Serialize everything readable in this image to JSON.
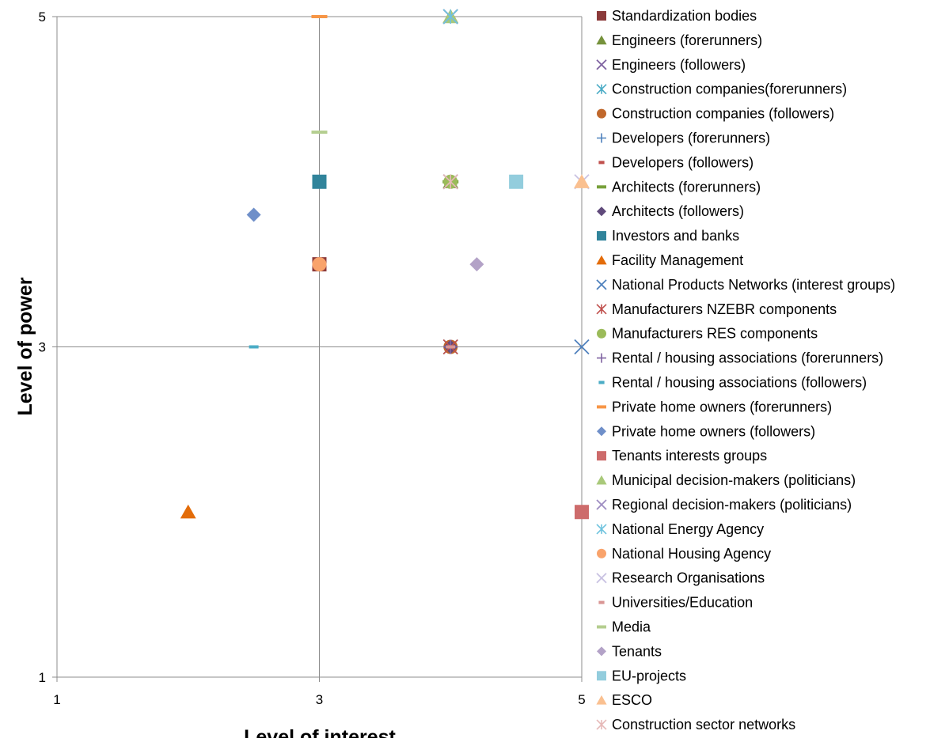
{
  "chart_data": {
    "type": "scatter",
    "title": "",
    "xlabel": "Level of interest",
    "ylabel": "Level of power",
    "xlim": [
      1,
      5
    ],
    "ylim": [
      1,
      5
    ],
    "x_ticks": [
      "1",
      "3",
      "5"
    ],
    "y_ticks": [
      "1",
      "3",
      "5"
    ],
    "grid": "center crosshair at x=3 and y=3",
    "legend_position": "right",
    "series": [
      {
        "name": "Standardization bodies",
        "color": "#8B3A3A",
        "marker": "square",
        "points": [
          [
            3,
            3.5
          ]
        ]
      },
      {
        "name": "Engineers (forerunners)",
        "color": "#76923C",
        "marker": "triangle",
        "points": [
          [
            4,
            5
          ],
          [
            4,
            4
          ]
        ]
      },
      {
        "name": "Engineers (followers)",
        "color": "#8064A2",
        "marker": "x",
        "points": [
          [
            4,
            5
          ],
          [
            4,
            4
          ]
        ]
      },
      {
        "name": "Construction companies(forerunners)",
        "color": "#4BACC6",
        "marker": "star",
        "points": [
          [
            4,
            3
          ]
        ]
      },
      {
        "name": "Construction companies (followers)",
        "color": "#C0682C",
        "marker": "circle",
        "points": [
          [
            4,
            3
          ]
        ]
      },
      {
        "name": "Developers (forerunners)",
        "color": "#4F81BD",
        "marker": "plus",
        "points": [
          [
            4,
            3
          ]
        ]
      },
      {
        "name": "Developers (followers)",
        "color": "#C0504D",
        "marker": "dash",
        "points": [
          [
            4,
            3
          ]
        ]
      },
      {
        "name": "Architects (forerunners)",
        "color": "#77A03A",
        "marker": "line",
        "points": [
          [
            4,
            4
          ]
        ]
      },
      {
        "name": "Architects (followers)",
        "color": "#604A7B",
        "marker": "diamond",
        "points": [
          [
            4,
            3
          ]
        ]
      },
      {
        "name": "Investors and banks",
        "color": "#31849B",
        "marker": "square",
        "points": [
          [
            3,
            4
          ]
        ]
      },
      {
        "name": "Facility Management",
        "color": "#E36C09",
        "marker": "triangle",
        "points": [
          [
            2,
            2
          ]
        ]
      },
      {
        "name": "National Products Networks (interest groups)",
        "color": "#4F81BD",
        "marker": "x",
        "points": [
          [
            5,
            3
          ]
        ]
      },
      {
        "name": "Manufacturers NZEBR components",
        "color": "#C0504D",
        "marker": "star",
        "points": [
          [
            4,
            3
          ]
        ]
      },
      {
        "name": "Manufacturers RES components",
        "color": "#9BBB59",
        "marker": "circle",
        "points": [
          [
            4,
            4
          ]
        ]
      },
      {
        "name": "Rental / housing associations (forerunners)",
        "color": "#8064A2",
        "marker": "plus",
        "points": [
          [
            4,
            3
          ]
        ]
      },
      {
        "name": "Rental / housing associations (followers)",
        "color": "#4BACC6",
        "marker": "dash",
        "points": [
          [
            2.5,
            3
          ]
        ]
      },
      {
        "name": "Private home owners (forerunners)",
        "color": "#F79646",
        "marker": "line",
        "points": [
          [
            3,
            5
          ]
        ]
      },
      {
        "name": "Private home owners (followers)",
        "color": "#6F8FC9",
        "marker": "diamond",
        "points": [
          [
            2.5,
            3.8
          ]
        ]
      },
      {
        "name": "Tenants interests groups",
        "color": "#CD6B6B",
        "marker": "square",
        "points": [
          [
            5,
            2
          ]
        ]
      },
      {
        "name": "Municipal decision-makers (politicians)",
        "color": "#A9C97A",
        "marker": "triangle",
        "points": [
          [
            4,
            5
          ]
        ]
      },
      {
        "name": "Regional decision-makers (politicians)",
        "color": "#9E8DC2",
        "marker": "x",
        "points": [
          [
            4,
            5
          ]
        ]
      },
      {
        "name": "National Energy Agency",
        "color": "#6FC3DE",
        "marker": "star",
        "points": [
          [
            4,
            5
          ]
        ]
      },
      {
        "name": "National Housing Agency",
        "color": "#F9A36B",
        "marker": "circle",
        "points": [
          [
            3,
            3.5
          ]
        ]
      },
      {
        "name": "Research Organisations",
        "color": "#C9C2E2",
        "marker": "x",
        "points": [
          [
            5,
            4
          ]
        ]
      },
      {
        "name": "Universities/Education",
        "color": "#D99694",
        "marker": "dash",
        "points": [
          [
            4,
            3
          ]
        ]
      },
      {
        "name": "Media",
        "color": "#B4CE8F",
        "marker": "line",
        "points": [
          [
            3,
            4.3
          ]
        ]
      },
      {
        "name": "Tenants",
        "color": "#B3A2C7",
        "marker": "diamond",
        "points": [
          [
            4.2,
            3.5
          ]
        ]
      },
      {
        "name": "EU-projects",
        "color": "#93CDDD",
        "marker": "square",
        "points": [
          [
            4.5,
            4
          ]
        ]
      },
      {
        "name": "ESCO",
        "color": "#FAC090",
        "marker": "triangle",
        "points": [
          [
            5,
            4
          ]
        ]
      },
      {
        "name": "Construction sector networks",
        "color": "#E6B9B8",
        "marker": "star",
        "points": [
          [
            4,
            4
          ]
        ]
      }
    ]
  }
}
